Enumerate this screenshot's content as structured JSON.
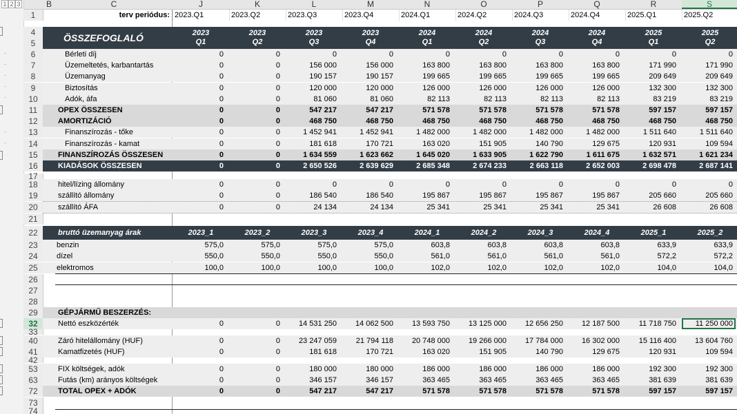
{
  "column_headers": [
    "B",
    "C",
    "J",
    "K",
    "L",
    "M",
    "N",
    "O",
    "P",
    "Q",
    "R",
    "S"
  ],
  "selected_column": "S",
  "outline_levels": [
    "1",
    "2",
    "3"
  ],
  "period_label": "terv periódus:",
  "periods": [
    "2023.Q1",
    "2023.Q2",
    "2023.Q3",
    "2023.Q4",
    "2024.Q1",
    "2024.Q2",
    "2024.Q3",
    "2024.Q4",
    "2025.Q1",
    "2025.Q2"
  ],
  "summary": {
    "title": "ÖSSZEFOGLALÓ",
    "years": [
      "2023",
      "2023",
      "2023",
      "2023",
      "2024",
      "2024",
      "2024",
      "2024",
      "2025",
      "2025"
    ],
    "quarters": [
      "Q1",
      "Q2",
      "Q3",
      "Q4",
      "Q1",
      "Q2",
      "Q3",
      "Q4",
      "Q1",
      "Q2"
    ],
    "rows": [
      {
        "num": "6",
        "label": "Bérleti díj",
        "values": [
          "0",
          "0",
          "0",
          "0",
          "0",
          "0",
          "0",
          "0",
          "0",
          "0"
        ]
      },
      {
        "num": "7",
        "label": "Üzemeltetés, karbantartás",
        "values": [
          "0",
          "0",
          "156 000",
          "156 000",
          "163 800",
          "163 800",
          "163 800",
          "163 800",
          "171 990",
          "171 990"
        ]
      },
      {
        "num": "8",
        "label": "Üzemanyag",
        "values": [
          "0",
          "0",
          "190 157",
          "190 157",
          "199 665",
          "199 665",
          "199 665",
          "199 665",
          "209 649",
          "209 649"
        ]
      },
      {
        "num": "9",
        "label": "Biztosítás",
        "values": [
          "0",
          "0",
          "120 000",
          "120 000",
          "126 000",
          "126 000",
          "126 000",
          "126 000",
          "132 300",
          "132 300"
        ]
      },
      {
        "num": "10",
        "label": "Adók, áfa",
        "values": [
          "0",
          "0",
          "81 060",
          "81 060",
          "82 113",
          "82 113",
          "82 113",
          "82 113",
          "83 219",
          "83 219"
        ]
      },
      {
        "num": "11",
        "label": "OPEX ÖSSZESEN",
        "values": [
          "0",
          "0",
          "547 217",
          "547 217",
          "571 578",
          "571 578",
          "571 578",
          "571 578",
          "597 157",
          "597 157"
        ]
      },
      {
        "num": "12",
        "label": "AMORTIZÁCIÓ",
        "values": [
          "0",
          "0",
          "468 750",
          "468 750",
          "468 750",
          "468 750",
          "468 750",
          "468 750",
          "468 750",
          "468 750"
        ]
      },
      {
        "num": "13",
        "label": "Finanszírozás - tőke",
        "values": [
          "0",
          "0",
          "1 452 941",
          "1 452 941",
          "1 482 000",
          "1 482 000",
          "1 482 000",
          "1 482 000",
          "1 511 640",
          "1 511 640"
        ]
      },
      {
        "num": "14",
        "label": "Finanszírozás - kamat",
        "values": [
          "0",
          "0",
          "181 618",
          "170 721",
          "163 020",
          "151 905",
          "140 790",
          "129 675",
          "120 931",
          "109 594"
        ]
      },
      {
        "num": "15",
        "label": "FINANSZÍROZÁS ÖSSZESEN",
        "values": [
          "0",
          "0",
          "1 634 559",
          "1 623 662",
          "1 645 020",
          "1 633 905",
          "1 622 790",
          "1 611 675",
          "1 632 571",
          "1 621 234"
        ]
      },
      {
        "num": "16",
        "label": "KIADÁSOK ÖSSZESEN",
        "values": [
          "0",
          "0",
          "2 650 526",
          "2 639 629",
          "2 685 348",
          "2 674 233",
          "2 663 118",
          "2 652 003",
          "2 698 478",
          "2 687 141"
        ]
      }
    ]
  },
  "stock": [
    {
      "num": "18",
      "label": "hitel/lízing állomány",
      "values": [
        "0",
        "0",
        "0",
        "0",
        "0",
        "0",
        "0",
        "0",
        "0",
        "0"
      ]
    },
    {
      "num": "19",
      "label": "szállító állomány",
      "values": [
        "0",
        "0",
        "186 540",
        "186 540",
        "195 867",
        "195 867",
        "195 867",
        "195 867",
        "205 660",
        "205 660"
      ]
    },
    {
      "num": "20",
      "label": "szállító ÁFA",
      "values": [
        "0",
        "0",
        "24 134",
        "24 134",
        "25 341",
        "25 341",
        "25 341",
        "25 341",
        "26 608",
        "26 608"
      ]
    }
  ],
  "fuel": {
    "title": "bruttó üzemanyag árak",
    "periods": [
      "2023_1",
      "2023_2",
      "2023_3",
      "2023_4",
      "2024_1",
      "2024_2",
      "2024_3",
      "2024_4",
      "2025_1",
      "2025_2"
    ],
    "rows": [
      {
        "num": "23",
        "label": "benzin",
        "values": [
          "575,0",
          "575,0",
          "575,0",
          "575,0",
          "603,8",
          "603,8",
          "603,8",
          "603,8",
          "633,9",
          "633,9"
        ]
      },
      {
        "num": "24",
        "label": "dízel",
        "values": [
          "550,0",
          "550,0",
          "550,0",
          "550,0",
          "561,0",
          "561,0",
          "561,0",
          "561,0",
          "572,2",
          "572,2"
        ]
      },
      {
        "num": "25",
        "label": "elektromos",
        "values": [
          "100,0",
          "100,0",
          "100,0",
          "100,0",
          "102,0",
          "102,0",
          "102,0",
          "102,0",
          "104,0",
          "104,0"
        ]
      }
    ]
  },
  "vehicle": {
    "title": "GÉPJÁRMŰ BESZERZÉS:",
    "rows": [
      {
        "num": "32",
        "label": "Nettó eszközérték",
        "values": [
          "0",
          "0",
          "14 531 250",
          "14 062 500",
          "13 593 750",
          "13 125 000",
          "12 656 250",
          "12 187 500",
          "11 718 750",
          "11 250 000"
        ]
      },
      {
        "num": "40",
        "label": "Záró hitelállomány (HUF)",
        "values": [
          "0",
          "0",
          "23 247 059",
          "21 794 118",
          "20 748 000",
          "19 266 000",
          "17 784 000",
          "16 302 000",
          "15 116 400",
          "13 604 760"
        ]
      },
      {
        "num": "41",
        "label": "Kamatfizetés (HUF)",
        "values": [
          "0",
          "0",
          "181 618",
          "170 721",
          "163 020",
          "151 905",
          "140 790",
          "129 675",
          "120 931",
          "109 594"
        ]
      },
      {
        "num": "53",
        "label": "FIX költségek, adók",
        "values": [
          "0",
          "0",
          "180 000",
          "180 000",
          "186 000",
          "186 000",
          "186 000",
          "186 000",
          "192 300",
          "192 300"
        ]
      },
      {
        "num": "63",
        "label": "Futás (km) arányos költségek",
        "values": [
          "0",
          "0",
          "346 157",
          "346 157",
          "363 465",
          "363 465",
          "363 465",
          "363 465",
          "381 639",
          "381 639"
        ]
      },
      {
        "num": "72",
        "label": "TOTAL OPEX + ADÓK",
        "values": [
          "0",
          "0",
          "547 217",
          "547 217",
          "571 578",
          "571 578",
          "571 578",
          "571 578",
          "597 157",
          "597 157"
        ]
      }
    ]
  },
  "row_numbers": {
    "r1": "1",
    "r4": "4",
    "r5": "5",
    "r17": "17",
    "r21": "21",
    "r22": "22",
    "r26": "26",
    "r27": "27",
    "r28": "28",
    "r29": "29",
    "r33": "33",
    "r42": "42",
    "r73": "73",
    "r74": "74"
  }
}
